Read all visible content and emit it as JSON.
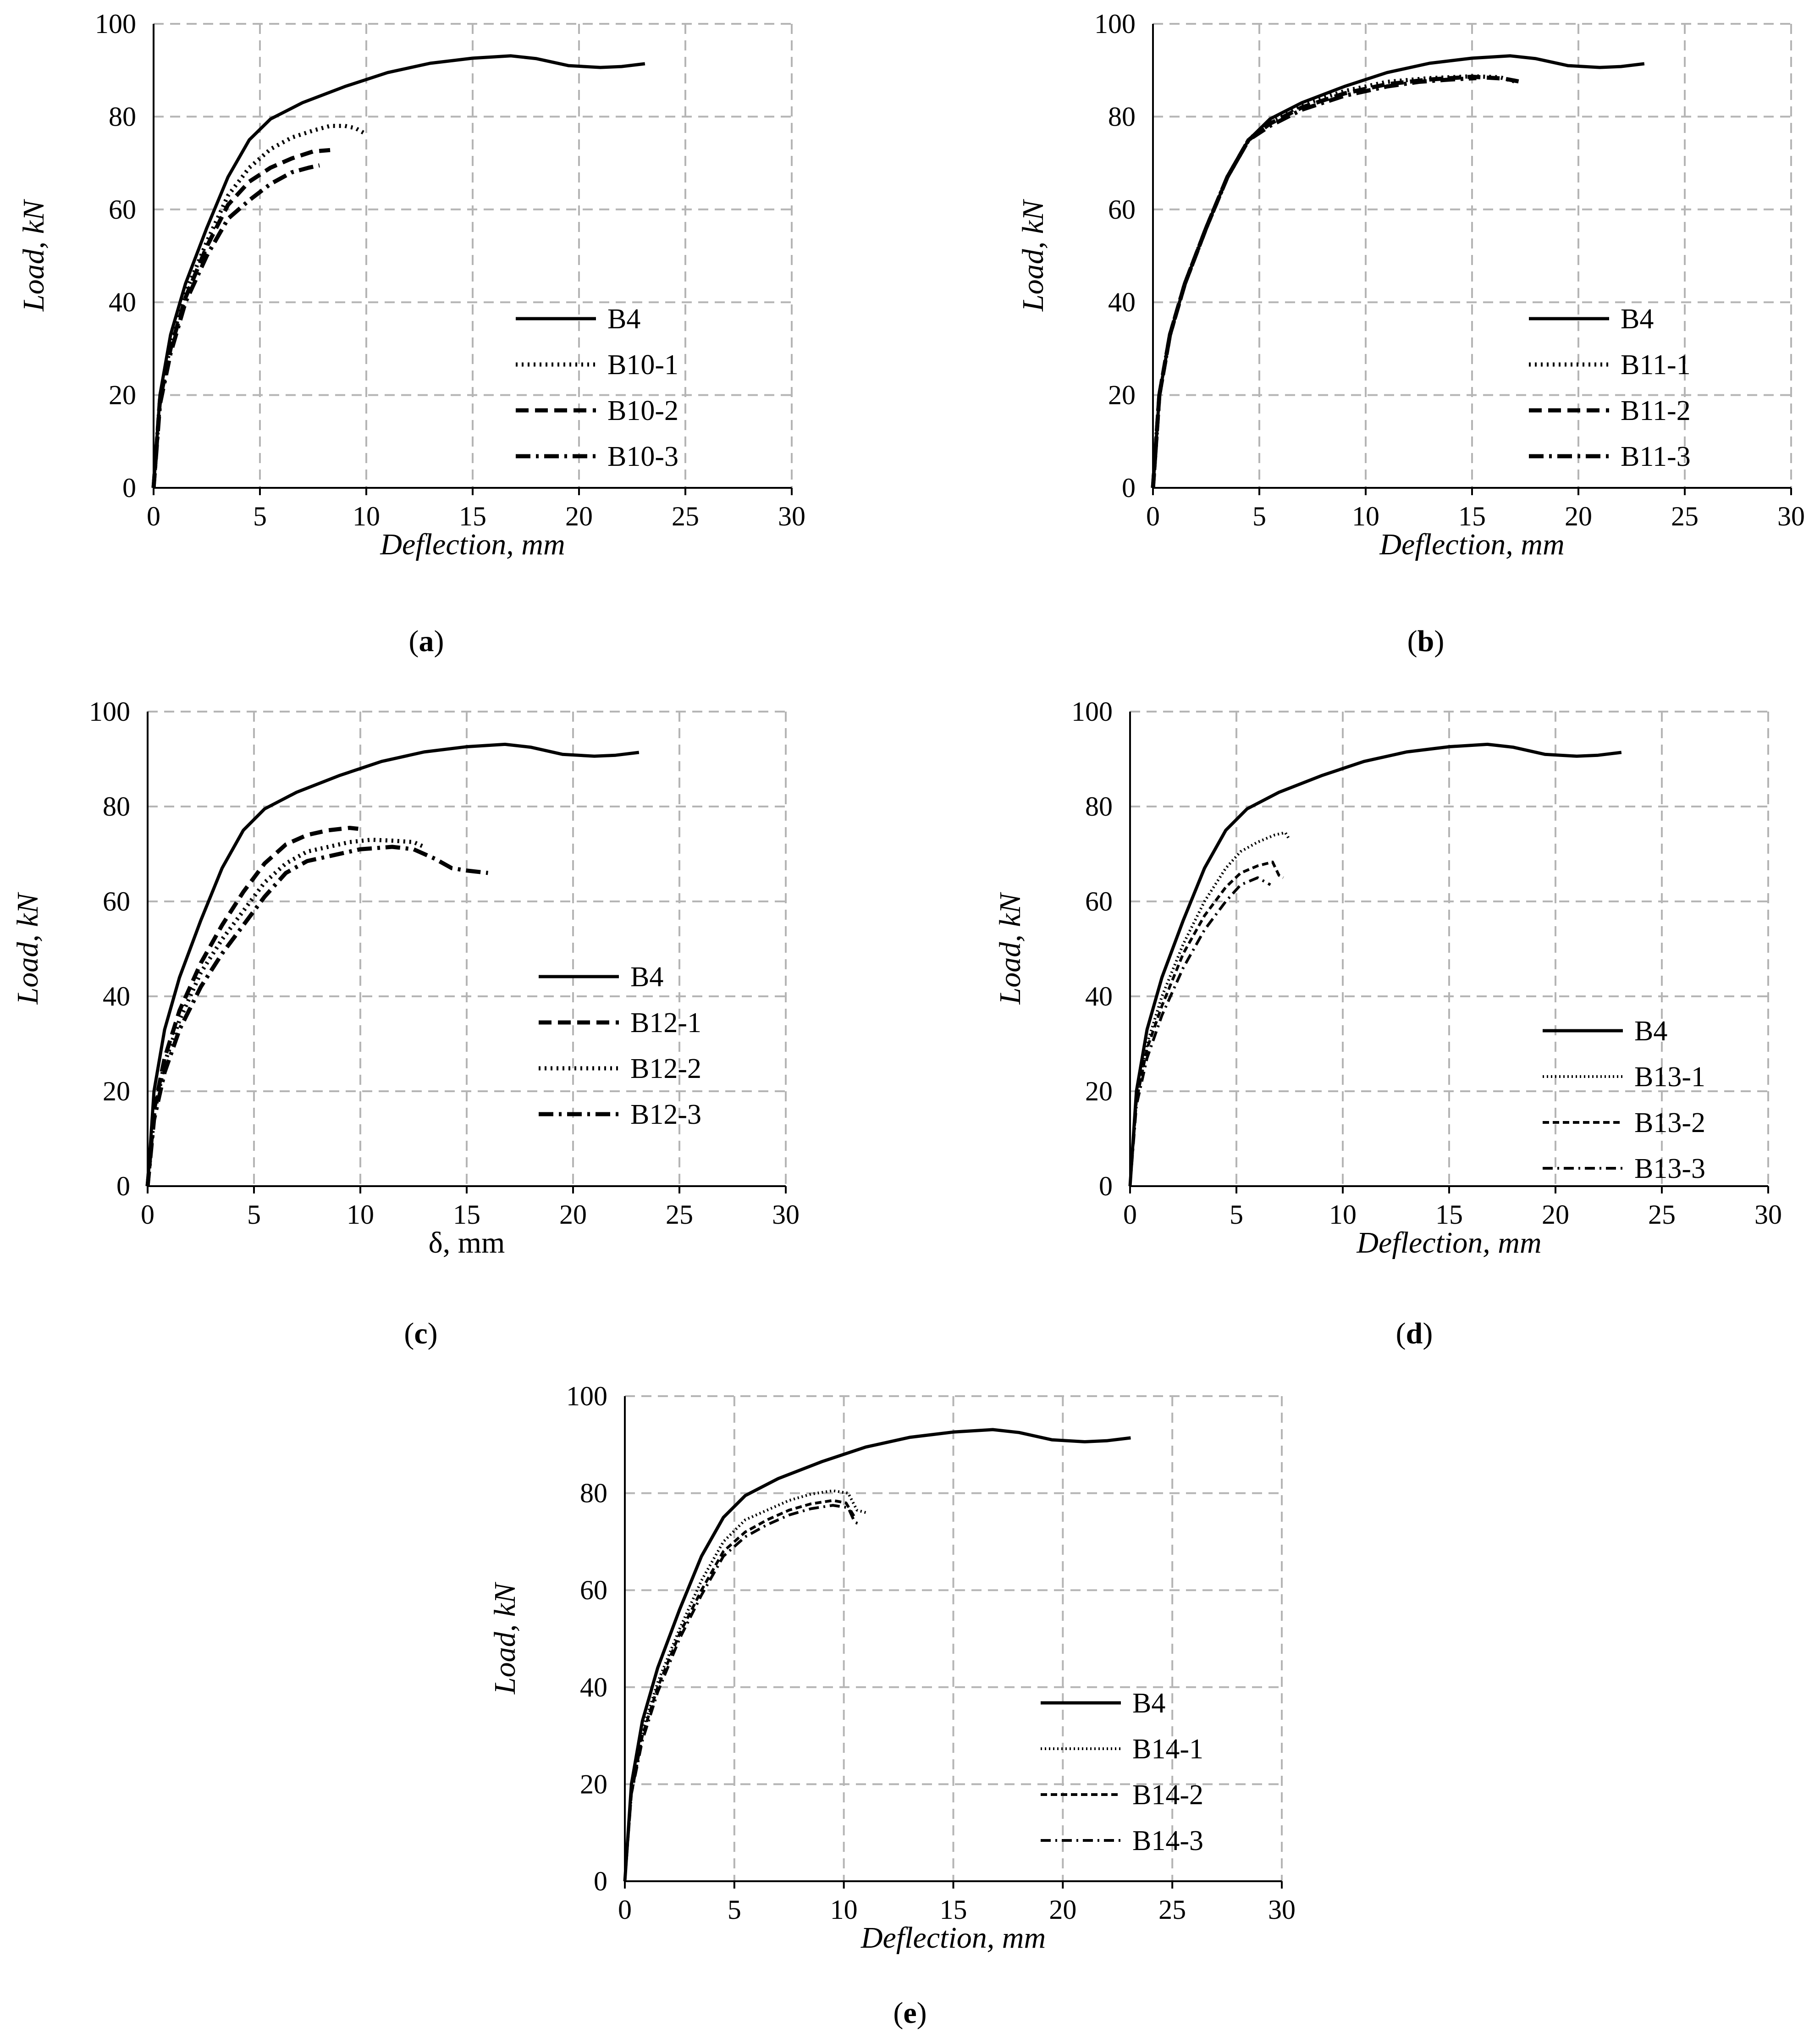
{
  "styles": {
    "solid": "",
    "dotted": "4 9",
    "dashed": "28 14",
    "dashdot": "32 12 6 12",
    "fine_dotted": "3 6",
    "fine_dashed": "14 8",
    "fine_dashdot": "22 10 4 10"
  },
  "chart_data": [
    {
      "id": "a",
      "type": "line",
      "caption_letter": "a",
      "caption_open": "(",
      "caption_close": ")",
      "xlabel": "Deflection, mm",
      "ylabel": "Load, kN",
      "xlim": [
        0,
        30
      ],
      "ylim": [
        0,
        100
      ],
      "xticks": [
        "0",
        "5",
        "10",
        "15",
        "20",
        "25",
        "30"
      ],
      "yticks": [
        "0",
        "20",
        "40",
        "60",
        "80",
        "100"
      ],
      "grid": true,
      "legend_position": "bottom-right",
      "series": [
        {
          "name": "B4",
          "style": "solid",
          "weight": 7,
          "x": [
            0,
            0.3,
            0.8,
            1.5,
            2.5,
            3.5,
            4.5,
            5.5,
            7,
            9,
            11,
            13,
            15,
            16.8,
            18,
            19.5,
            21,
            22,
            23.1
          ],
          "y": [
            0,
            20,
            33,
            44,
            56,
            67,
            75,
            79.5,
            83,
            86.5,
            89.5,
            91.5,
            92.6,
            93.1,
            92.5,
            91,
            90.6,
            90.8,
            91.4
          ]
        },
        {
          "name": "B10-1",
          "style": "dotted",
          "weight": 9,
          "x": [
            0,
            0.3,
            0.8,
            1.5,
            2.5,
            3.5,
            4.5,
            5.5,
            6.5,
            7.5,
            8.3,
            9,
            9.5,
            10
          ],
          "y": [
            0,
            19,
            31,
            42,
            53,
            63,
            69,
            73,
            75.5,
            77,
            78,
            78,
            77.5,
            76.2
          ]
        },
        {
          "name": "B10-2",
          "style": "dashed",
          "weight": 9,
          "x": [
            0,
            0.3,
            0.8,
            1.5,
            2.5,
            3.5,
            4.5,
            5.5,
            6.5,
            7.5,
            8.3
          ],
          "y": [
            0,
            19,
            30,
            41,
            52,
            61,
            66,
            69,
            71,
            72.5,
            72.8
          ]
        },
        {
          "name": "B10-3",
          "style": "dashdot",
          "weight": 9,
          "x": [
            0,
            0.3,
            0.8,
            1.5,
            2.5,
            3.5,
            4.5,
            5.5,
            6.5,
            7.3,
            7.8
          ],
          "y": [
            0,
            18,
            29,
            40,
            50,
            58,
            62,
            65.5,
            68,
            69,
            69.5
          ]
        }
      ],
      "legend": [
        "B4",
        "B10-1",
        "B10-2",
        "B10-3"
      ]
    },
    {
      "id": "b",
      "type": "line",
      "caption_letter": "b",
      "caption_open": "(",
      "caption_close": ")",
      "xlabel": "Deflection, mm",
      "ylabel": "Load, kN",
      "xlim": [
        0,
        30
      ],
      "ylim": [
        0,
        100
      ],
      "xticks": [
        "0",
        "5",
        "10",
        "15",
        "20",
        "25",
        "30"
      ],
      "yticks": [
        "0",
        "20",
        "40",
        "60",
        "80",
        "100"
      ],
      "grid": true,
      "legend_position": "bottom-right",
      "series": [
        {
          "name": "B4",
          "style": "solid",
          "weight": 7,
          "x": [
            0,
            0.3,
            0.8,
            1.5,
            2.5,
            3.5,
            4.5,
            5.5,
            7,
            9,
            11,
            13,
            15,
            16.8,
            18,
            19.5,
            21,
            22,
            23.1
          ],
          "y": [
            0,
            20,
            33,
            44,
            56,
            67,
            75,
            79.5,
            83,
            86.5,
            89.5,
            91.5,
            92.6,
            93.1,
            92.5,
            91,
            90.6,
            90.8,
            91.4
          ]
        },
        {
          "name": "B11-1",
          "style": "dotted",
          "weight": 9,
          "x": [
            0,
            0.3,
            0.8,
            1.5,
            2.5,
            3.5,
            4.5,
            5.5,
            7,
            9,
            11,
            13,
            15,
            16.3,
            17
          ],
          "y": [
            0,
            20,
            33,
            44,
            56,
            67,
            75,
            79,
            82.5,
            85.5,
            87.5,
            88.3,
            88.7,
            88.5,
            87.6
          ]
        },
        {
          "name": "B11-2",
          "style": "dashed",
          "weight": 9,
          "x": [
            0,
            0.3,
            0.8,
            1.5,
            2.5,
            3.5,
            4.5,
            5.5,
            7,
            9,
            11,
            13,
            15,
            16.5,
            17.3
          ],
          "y": [
            0,
            20,
            33,
            44,
            56,
            67,
            75,
            78.5,
            82,
            85,
            87,
            88,
            88.6,
            88.2,
            87.5
          ]
        },
        {
          "name": "B11-3",
          "style": "dashdot",
          "weight": 9,
          "x": [
            0,
            0.3,
            0.8,
            1.5,
            2.5,
            3.5,
            4.5,
            5.5,
            7,
            9,
            11,
            12.5,
            14,
            15.2
          ],
          "y": [
            0,
            20,
            33,
            44,
            56,
            67,
            75,
            78,
            81.5,
            84.5,
            86.5,
            87.5,
            88,
            88.3
          ]
        }
      ],
      "legend": [
        "B4",
        "B11-1",
        "B11-2",
        "B11-3"
      ]
    },
    {
      "id": "c",
      "type": "line",
      "caption_letter": "c",
      "caption_open": "(",
      "caption_close": ")",
      "xlabel": "δ, mm",
      "xlabel_upright": true,
      "ylabel": "Load, kN",
      "xlim": [
        0,
        30
      ],
      "ylim": [
        0,
        100
      ],
      "xticks": [
        "0",
        "5",
        "10",
        "15",
        "20",
        "25",
        "30"
      ],
      "yticks": [
        "0",
        "20",
        "40",
        "60",
        "80",
        "100"
      ],
      "grid": true,
      "legend_position": "bottom-right",
      "series": [
        {
          "name": "B4",
          "style": "solid",
          "weight": 7,
          "x": [
            0,
            0.3,
            0.8,
            1.5,
            2.5,
            3.5,
            4.5,
            5.5,
            7,
            9,
            11,
            13,
            15,
            16.8,
            18,
            19.5,
            21,
            22,
            23.1
          ],
          "y": [
            0,
            20,
            33,
            44,
            56,
            67,
            75,
            79.5,
            83,
            86.5,
            89.5,
            91.5,
            92.6,
            93.1,
            92.5,
            91,
            90.6,
            90.8,
            91.4
          ]
        },
        {
          "name": "B12-1",
          "style": "dashed",
          "weight": 9,
          "x": [
            0,
            0.3,
            0.8,
            1.5,
            2.5,
            3.5,
            4.5,
            5.5,
            6.5,
            7.5,
            8.5,
            9.5,
            9.9
          ],
          "y": [
            0,
            16,
            27,
            37,
            47,
            55,
            62,
            68,
            72,
            74,
            75,
            75.5,
            75.3
          ]
        },
        {
          "name": "B12-2",
          "style": "dotted",
          "weight": 9,
          "x": [
            0,
            0.3,
            0.8,
            1.5,
            2.5,
            3.5,
            4.5,
            5.5,
            6.5,
            7.5,
            8.5,
            9.5,
            10.5,
            11.5,
            12.5,
            13
          ],
          "y": [
            0,
            15,
            26,
            35,
            45,
            52,
            58,
            64,
            68,
            70.5,
            71.5,
            72.5,
            73,
            72.8,
            72.5,
            71.5
          ]
        },
        {
          "name": "B12-3",
          "style": "dashdot",
          "weight": 9,
          "x": [
            0,
            0.3,
            0.8,
            1.5,
            2.5,
            3.5,
            4.5,
            5.5,
            6.5,
            7.5,
            8.5,
            10,
            11.5,
            12.5,
            13.5,
            14.3,
            15,
            16
          ],
          "y": [
            0,
            14,
            24,
            33,
            42,
            49,
            55,
            61,
            66,
            68.5,
            69.5,
            71,
            71.5,
            71,
            69,
            67,
            66.5,
            66
          ]
        }
      ],
      "legend": [
        "B4",
        "B12-1",
        "B12-2",
        "B12-3"
      ]
    },
    {
      "id": "d",
      "type": "line",
      "caption_letter": "d",
      "caption_open": "(",
      "caption_close": ")",
      "xlabel": "Deflection, mm",
      "ylabel": "Load, kN",
      "xlim": [
        0,
        30
      ],
      "ylim": [
        0,
        100
      ],
      "xticks": [
        "0",
        "5",
        "10",
        "15",
        "20",
        "25",
        "30"
      ],
      "yticks": [
        "0",
        "20",
        "40",
        "60",
        "80",
        "100"
      ],
      "grid": true,
      "legend_position": "bottom-right",
      "series": [
        {
          "name": "B4",
          "style": "solid",
          "weight": 7,
          "x": [
            0,
            0.3,
            0.8,
            1.5,
            2.5,
            3.5,
            4.5,
            5.5,
            7,
            9,
            11,
            13,
            15,
            16.8,
            18,
            19.5,
            21,
            22,
            23.1
          ],
          "y": [
            0,
            20,
            33,
            44,
            56,
            67,
            75,
            79.5,
            83,
            86.5,
            89.5,
            91.5,
            92.6,
            93.1,
            92.5,
            91,
            90.6,
            90.8,
            91.4
          ]
        },
        {
          "name": "B13-1",
          "style": "fine_dotted",
          "weight": 6,
          "x": [
            0,
            0.3,
            0.8,
            1.5,
            2.5,
            3.5,
            4.5,
            5.2,
            6,
            6.8,
            7.3,
            7.5
          ],
          "y": [
            0,
            19,
            30,
            40,
            51,
            60,
            67,
            70.5,
            72.5,
            74,
            74.5,
            73
          ]
        },
        {
          "name": "B13-2",
          "style": "fine_dashed",
          "weight": 6,
          "x": [
            0,
            0.3,
            0.8,
            1.5,
            2.5,
            3.5,
            4.5,
            5.2,
            6,
            6.7,
            7,
            7.2
          ],
          "y": [
            0,
            18,
            29,
            38,
            49,
            57,
            63,
            66,
            67.5,
            68.3,
            65.5,
            65
          ]
        },
        {
          "name": "B13-3",
          "style": "fine_dashdot",
          "weight": 6,
          "x": [
            0,
            0.3,
            0.8,
            1.5,
            2.5,
            3.5,
            4.5,
            5.2,
            6,
            6.6
          ],
          "y": [
            0,
            17,
            27,
            36,
            46,
            54,
            60,
            63.5,
            65,
            63.5
          ]
        }
      ],
      "legend": [
        "B4",
        "B13-1",
        "B13-2",
        "B13-3"
      ]
    },
    {
      "id": "e",
      "type": "line",
      "caption_letter": "e",
      "caption_open": "(",
      "caption_close": ")",
      "xlabel": "Deflection, mm",
      "ylabel": "Load, kN",
      "xlim": [
        0,
        30
      ],
      "ylim": [
        0,
        100
      ],
      "xticks": [
        "0",
        "5",
        "10",
        "15",
        "20",
        "25",
        "30"
      ],
      "yticks": [
        "0",
        "20",
        "40",
        "60",
        "80",
        "100"
      ],
      "grid": true,
      "legend_position": "bottom-right",
      "series": [
        {
          "name": "B4",
          "style": "solid",
          "weight": 7,
          "x": [
            0,
            0.3,
            0.8,
            1.5,
            2.5,
            3.5,
            4.5,
            5.5,
            7,
            9,
            11,
            13,
            15,
            16.8,
            18,
            19.5,
            21,
            22,
            23.1
          ],
          "y": [
            0,
            20,
            33,
            44,
            56,
            67,
            75,
            79.5,
            83,
            86.5,
            89.5,
            91.5,
            92.6,
            93.1,
            92.5,
            91,
            90.6,
            90.8,
            91.4
          ]
        },
        {
          "name": "B14-1",
          "style": "fine_dotted",
          "weight": 6,
          "x": [
            0,
            0.3,
            0.8,
            1.5,
            2.5,
            3.5,
            4.5,
            5.5,
            6.5,
            7.5,
            8.5,
            9.5,
            10.2,
            10.6,
            11
          ],
          "y": [
            0,
            19,
            31,
            41,
            52,
            62,
            70,
            74.5,
            76.5,
            78.5,
            79.8,
            80.5,
            80,
            76.5,
            76
          ]
        },
        {
          "name": "B14-2",
          "style": "fine_dashed",
          "weight": 6,
          "x": [
            0,
            0.3,
            0.8,
            1.5,
            2.5,
            3.5,
            4.5,
            5.5,
            6.5,
            7.5,
            8.5,
            9.5,
            10.1,
            10.5
          ],
          "y": [
            0,
            18,
            30,
            40,
            51,
            60,
            68,
            72,
            74.5,
            76.5,
            77.8,
            78.5,
            78,
            75
          ]
        },
        {
          "name": "B14-3",
          "style": "fine_dashdot",
          "weight": 6,
          "x": [
            0,
            0.3,
            0.8,
            1.5,
            2.5,
            3.5,
            4.5,
            5.5,
            6.5,
            7.5,
            8.5,
            9.5,
            10.2,
            10.5,
            10.8
          ],
          "y": [
            0,
            18,
            29,
            39,
            50,
            59,
            67,
            71,
            73.5,
            75.5,
            76.8,
            77.5,
            77,
            74,
            73.5
          ]
        }
      ],
      "legend": [
        "B4",
        "B14-1",
        "B14-2",
        "B14-3"
      ]
    }
  ]
}
